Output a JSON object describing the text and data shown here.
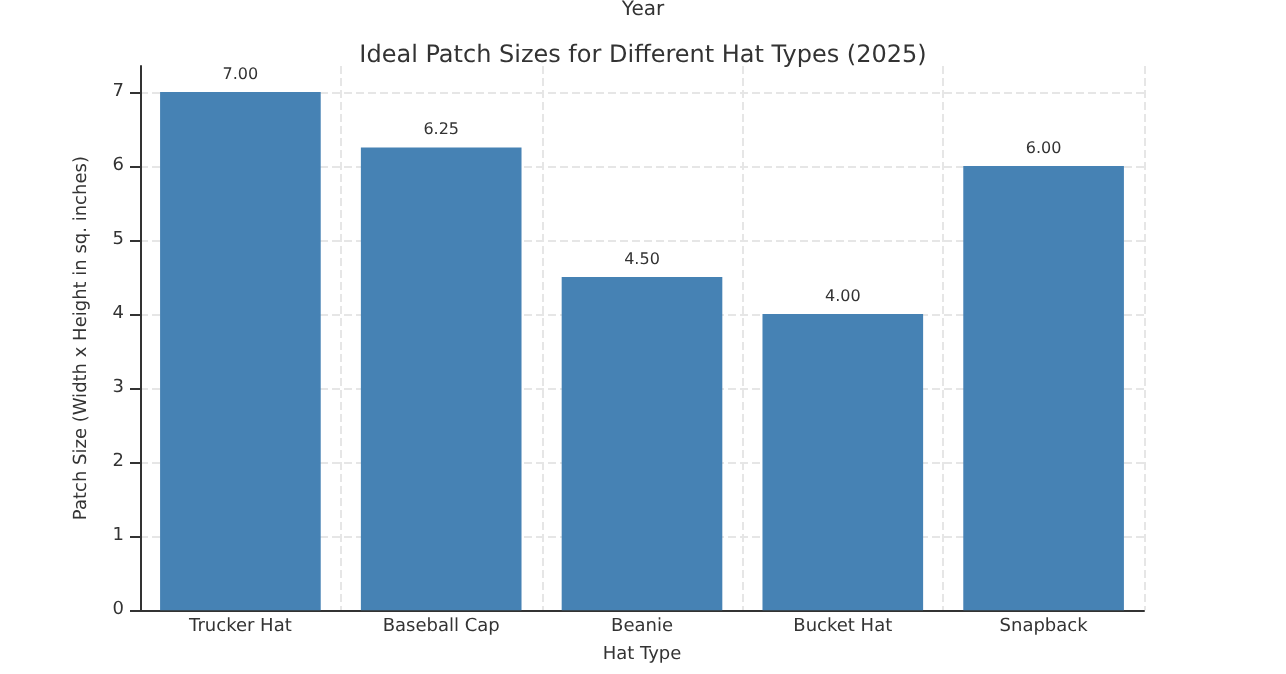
{
  "chart_data": {
    "type": "bar",
    "title": "Ideal Patch Sizes for Different Hat Types (2025)",
    "xlabel": "Hat Type",
    "ylabel": "Patch Size (Width x Height in sq. inches)",
    "annotations": [
      "Year"
    ],
    "categories": [
      "Trucker Hat",
      "Baseball Cap",
      "Beanie",
      "Bucket Hat",
      "Snapback"
    ],
    "values": [
      7.0,
      6.25,
      4.5,
      4.0,
      6.0
    ],
    "color": "#4682b4",
    "value_labels": [
      "7.00",
      "6.25",
      "4.50",
      "4.00",
      "6.00"
    ],
    "ylim": [
      0,
      7.35
    ],
    "yticks": [
      0,
      1,
      2,
      3,
      4,
      5,
      6,
      7
    ],
    "grid": true
  }
}
